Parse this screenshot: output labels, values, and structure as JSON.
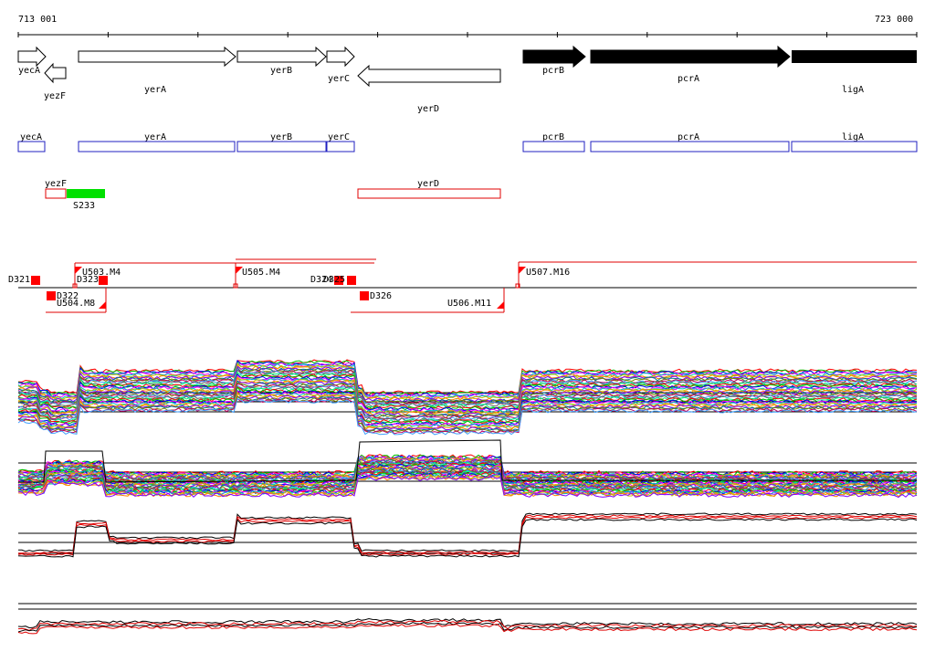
{
  "coords": {
    "start_label": "713 001",
    "end_label": "723 000"
  },
  "genes_top": [
    {
      "id": "yecA",
      "label": "yecA"
    },
    {
      "id": "yezF",
      "label": "yezF"
    },
    {
      "id": "yerA",
      "label": "yerA"
    },
    {
      "id": "yerB",
      "label": "yerB"
    },
    {
      "id": "yerC",
      "label": "yerC"
    },
    {
      "id": "yerD",
      "label": "yerD"
    },
    {
      "id": "pcrB",
      "label": "pcrB"
    },
    {
      "id": "pcrA",
      "label": "pcrA"
    },
    {
      "id": "ligA",
      "label": "ligA"
    }
  ],
  "operons_blue": [
    {
      "id": "yecA",
      "label": "yecA"
    },
    {
      "id": "yerA",
      "label": "yerA"
    },
    {
      "id": "yerB",
      "label": "yerB"
    },
    {
      "id": "yerC",
      "label": "yerC"
    },
    {
      "id": "pcrB",
      "label": "pcrB"
    },
    {
      "id": "pcrA",
      "label": "pcrA"
    },
    {
      "id": "ligA",
      "label": "ligA"
    }
  ],
  "operons_red": [
    {
      "id": "yezF",
      "label": "yezF"
    },
    {
      "id": "yerD",
      "label": "yerD"
    }
  ],
  "rna_feature": {
    "label": "S233",
    "color": "#00e000"
  },
  "segments": [
    {
      "id": "D321",
      "label": "D321"
    },
    {
      "id": "D322",
      "label": "D322"
    },
    {
      "id": "D323",
      "label": "D323"
    },
    {
      "id": "U503",
      "label": "U503.M4"
    },
    {
      "id": "U504",
      "label": "U504.M8"
    },
    {
      "id": "U505",
      "label": "U505.M4"
    },
    {
      "id": "D324",
      "label": "D324"
    },
    {
      "id": "D325",
      "label": "D325"
    },
    {
      "id": "D326",
      "label": "D326"
    },
    {
      "id": "U506",
      "label": "U506.M11"
    },
    {
      "id": "U507",
      "label": "U507.M16"
    }
  ],
  "colors": {
    "operon_blue": "#2020c0",
    "operon_red": "#e00000",
    "segment_red": "#ff0000",
    "gene_fill_dark": "#000000",
    "profile_palette": [
      "#ff0000",
      "#00c000",
      "#0000ff",
      "#ff00ff",
      "#00c0c0",
      "#c0c000",
      "#ff8000",
      "#8000ff",
      "#008080",
      "#808000",
      "#c00060",
      "#40a0ff",
      "#606060",
      "#00ff80"
    ]
  }
}
